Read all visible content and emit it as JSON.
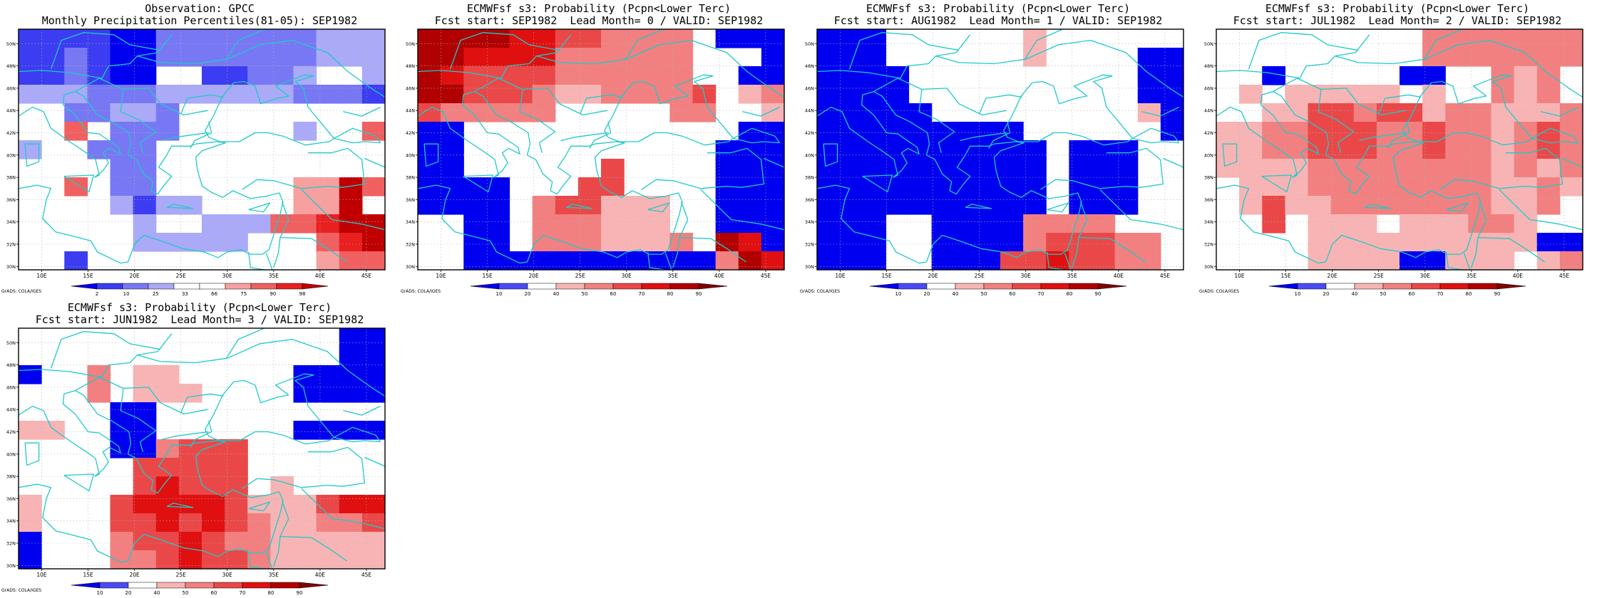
{
  "x_ticks": [
    "10E",
    "15E",
    "20E",
    "25E",
    "30E",
    "35E",
    "40E",
    "45E"
  ],
  "y_ticks": [
    "50N",
    "48N",
    "46N",
    "44N",
    "42N",
    "40N",
    "38N",
    "36N",
    "34N",
    "32N",
    "30N"
  ],
  "grads_label": "GrADS: COLA/IGES",
  "colors": {
    "coast": "#1fc9c9",
    "grid": "#b4b4b4",
    "obs_palette": [
      "#0000f0",
      "#3c3cf2",
      "#7878f4",
      "#aaaaf8",
      "#ffffff",
      "#ffffff",
      "#f8a0a0",
      "#f06060",
      "#e82020",
      "#c00000"
    ],
    "prob_palette": [
      "#0000f0",
      "#4a4af4",
      "#ffffff",
      "#f8b4b4",
      "#f28080",
      "#ea4848",
      "#e01010",
      "#b00000",
      "#800000"
    ]
  },
  "panels": [
    {
      "id": "obs",
      "title1": "Observation: GPCC",
      "title2": "Monthly Precipitation Percentiles(81-05): SEP1982",
      "colorbar_labels": [
        "2",
        "10",
        "25",
        "33",
        "66",
        "75",
        "90",
        "98"
      ],
      "palette": "obs_palette"
    },
    {
      "id": "lead0",
      "title1": "ECMWFsf s3: Probability (Pcpn<Lower Terc)",
      "title2": "Fcst start: SEP1982  Lead Month= 0 / VALID: SEP1982",
      "colorbar_labels": [
        "10",
        "20",
        "40",
        "50",
        "60",
        "70",
        "80",
        "90"
      ],
      "palette": "prob_palette"
    },
    {
      "id": "lead1",
      "title1": "ECMWFsf s3: Probability (Pcpn<Lower Terc)",
      "title2": "Fcst start: AUG1982  Lead Month= 1 / VALID: SEP1982",
      "colorbar_labels": [
        "10",
        "20",
        "40",
        "50",
        "60",
        "70",
        "80",
        "90"
      ],
      "palette": "prob_palette"
    },
    {
      "id": "lead2",
      "title1": "ECMWFsf s3: Probability (Pcpn<Lower Terc)",
      "title2": "Fcst start: JUL1982  Lead Month= 2 / VALID: SEP1982",
      "colorbar_labels": [
        "10",
        "20",
        "40",
        "50",
        "60",
        "70",
        "80",
        "90"
      ],
      "palette": "prob_palette"
    },
    {
      "id": "lead3",
      "title1": "ECMWFsf s3: Probability (Pcpn<Lower Terc)",
      "title2": "Fcst start: JUN1982  Lead Month= 3 / VALID: SEP1982",
      "colorbar_labels": [
        "10",
        "20",
        "40",
        "50",
        "60",
        "70",
        "80",
        "90"
      ],
      "palette": "prob_palette"
    }
  ],
  "grids": {
    "obs": [
      "1111002222222333",
      "1121002222222333",
      "1121004411223443",
      "3332223333332221",
      "4422332444444444",
      "4474222444443447",
      "3442224444444444",
      "4444224444444444",
      "4474224444446697",
      "4444313344446694",
      "4444434433377899",
      "4444433333444789",
      "4414455544455677"
    ],
    "lead0": [
      "7777665544442000",
      "7766664444442220",
      "7655554444442200",
      "7755543344445234",
      "5444442222244223",
      "0022222222222200",
      "0022222222222000",
      "0022222252222000",
      "0000222552222000",
      "0000245533322000",
      "2200244433322000",
      "2200244433342760",
      "2200000000000476"
    ],
    "lead1": [
      "0002222223222222",
      "0002222223222200",
      "0000222222222200",
      "0000222222222200",
      "0000022222222230",
      "0000000002222220",
      "0000000000200022",
      "0000000000200022",
      "0000000000200022",
      "0000000000200022",
      "0002200004444222",
      "0002200004555442",
      "0002200055655442"
    ],
    "lead2": [
      "2222222224444444",
      "2222222224444444",
      "2202222200224342",
      "2323333323224342",
      "2233554553443334",
      "3344555445443454",
      "3344555445443454",
      "3333444444443434",
      "2333444444443343",
      "2353344444443342",
      "2252333233344322",
      "2222333333333300",
      "2222333300333234"
    ],
    "lead3": [
      "2222222222222200",
      "2222222222222200",
      "0224233222220000",
      "2224233322220000",
      "2222002222222222",
      "3322002222220000",
      "2222004555222222",
      "2222255555222222",
      "2222256555232222",
      "3222566665333566",
      "3222556565433445",
      "0222455654433333",
      "0222445655433333"
    ]
  }
}
